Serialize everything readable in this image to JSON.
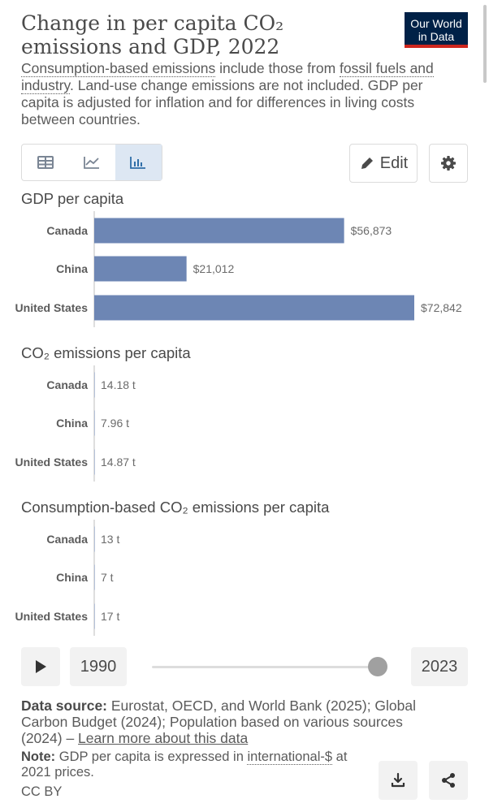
{
  "header": {
    "title": "Change in per capita CO₂ emissions and GDP, 2022",
    "logo_line1": "Our World",
    "logo_line2": "in Data",
    "subtitle_link1": "Consumption-based emissions",
    "subtitle_text1": " include those from ",
    "subtitle_link2": "fossil fuels and industry",
    "subtitle_text2": ". Land-use change emissions are not included. GDP per capita is adjusted for inflation and for differences in living costs between countries."
  },
  "toolbar": {
    "tabs": [
      {
        "icon": "table-icon",
        "active": false
      },
      {
        "icon": "line-chart-icon",
        "active": false
      },
      {
        "icon": "bar-chart-icon",
        "active": true
      }
    ],
    "edit_label": "Edit",
    "settings_icon": "gear-icon"
  },
  "chart_data": [
    {
      "type": "bar",
      "orientation": "horizontal",
      "title": "GDP per capita",
      "categories": [
        "Canada",
        "China",
        "United States"
      ],
      "values": [
        56873,
        21012,
        72842
      ],
      "value_labels": [
        "$56,873",
        "$21,012",
        "$72,842"
      ],
      "color": "#6d86b4"
    },
    {
      "type": "bar",
      "orientation": "horizontal",
      "title": "CO₂ emissions per capita",
      "categories": [
        "Canada",
        "China",
        "United States"
      ],
      "values": [
        14.18,
        7.96,
        14.87
      ],
      "value_labels": [
        "14.18 t",
        "7.96 t",
        "14.87 t"
      ],
      "color": "#6d86b4"
    },
    {
      "type": "bar",
      "orientation": "horizontal",
      "title": "Consumption-based CO₂ emissions per capita",
      "categories": [
        "Canada",
        "China",
        "United States"
      ],
      "values": [
        13,
        7,
        17
      ],
      "value_labels": [
        "13 t",
        "7 t",
        "17 t"
      ],
      "color": "#6d86b4"
    }
  ],
  "timeline": {
    "start_year": "1990",
    "end_year": "2023",
    "play_icon": "play-icon",
    "position": 1.0
  },
  "footer": {
    "source_label": "Data source:",
    "source_text": " Eurostat, OECD, and World Bank (2025); Global Carbon Budget (2024); Population based on various sources (2024) – ",
    "source_link": "Learn more about this data",
    "note_label": "Note:",
    "note_text1": " GDP per capita is expressed in ",
    "note_link": "international-$",
    "note_text2": " at 2021 prices.",
    "license": "CC BY",
    "download_icon": "download-icon",
    "share_icon": "share-icon"
  }
}
